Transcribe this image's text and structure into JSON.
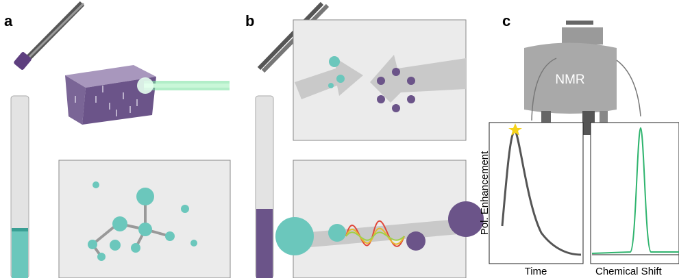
{
  "panels": {
    "a": {
      "label": "a"
    },
    "b": {
      "label": "b"
    },
    "c": {
      "label": "c",
      "instrument": "NMR",
      "left_plot": {
        "y_label": "Pol. Enhancement",
        "x_label": "Time"
      },
      "right_plot": {
        "x_label": "Chemical Shift"
      }
    }
  }
}
